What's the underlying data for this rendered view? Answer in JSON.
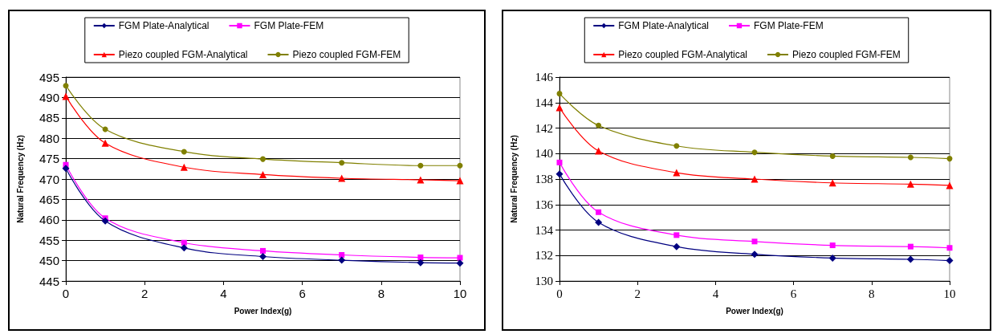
{
  "chart_data": [
    {
      "type": "line",
      "xlabel": "Power Index(g)",
      "ylabel": "Natural Frequency (Hz)",
      "x": [
        0,
        1,
        3,
        5,
        7,
        9,
        10
      ],
      "xlim": [
        0,
        10
      ],
      "xticks": [
        0,
        2,
        4,
        6,
        8,
        10
      ],
      "ylim": [
        445,
        495
      ],
      "yticks": [
        445,
        450,
        455,
        460,
        465,
        470,
        475,
        480,
        485,
        490,
        495
      ],
      "grid": "y",
      "legend": "top",
      "line_style": "solid",
      "series": [
        {
          "name": "FGM Plate-Analytical",
          "color": "#000080",
          "marker": "diamond",
          "values": [
            472.6,
            459.7,
            453.1,
            451.0,
            450.1,
            449.5,
            449.4
          ]
        },
        {
          "name": "FGM Plate-FEM",
          "color": "#ff00ff",
          "marker": "square",
          "values": [
            473.5,
            460.4,
            454.4,
            452.4,
            451.4,
            450.8,
            450.7
          ]
        },
        {
          "name": "Piezo coupled FGM-Analytical",
          "color": "#ff0000",
          "marker": "triangle",
          "values": [
            490.3,
            478.8,
            472.9,
            471.1,
            470.2,
            469.8,
            469.6
          ]
        },
        {
          "name": "Piezo coupled FGM-FEM",
          "color": "#808000",
          "marker": "circle",
          "values": [
            492.9,
            482.2,
            476.7,
            474.9,
            474.0,
            473.3,
            473.3
          ]
        }
      ]
    },
    {
      "type": "line",
      "xlabel": "Power Index(g)",
      "ylabel": "Natural Frequency (Hz)",
      "x": [
        0,
        1,
        3,
        5,
        7,
        9,
        10
      ],
      "xlim": [
        0,
        10
      ],
      "xticks": [
        0,
        2,
        4,
        6,
        8,
        10
      ],
      "ylim": [
        130,
        146
      ],
      "yticks": [
        130,
        132,
        134,
        136,
        138,
        140,
        142,
        144,
        146
      ],
      "grid": "y",
      "legend": "top",
      "line_style": "solid",
      "series": [
        {
          "name": "FGM Plate-Analytical",
          "color": "#000080",
          "marker": "diamond",
          "values": [
            138.4,
            134.6,
            132.7,
            132.1,
            131.8,
            131.7,
            131.6
          ]
        },
        {
          "name": "FGM Plate-FEM",
          "color": "#ff00ff",
          "marker": "square",
          "values": [
            139.3,
            135.4,
            133.6,
            133.1,
            132.8,
            132.7,
            132.6
          ]
        },
        {
          "name": "Piezo coupled FGM-Analytical",
          "color": "#ff0000",
          "marker": "triangle",
          "values": [
            143.6,
            140.2,
            138.5,
            138.0,
            137.7,
            137.6,
            137.5
          ]
        },
        {
          "name": "Piezo coupled FGM-FEM",
          "color": "#808000",
          "marker": "circle",
          "values": [
            144.7,
            142.2,
            140.6,
            140.1,
            139.8,
            139.7,
            139.6
          ]
        }
      ]
    }
  ]
}
